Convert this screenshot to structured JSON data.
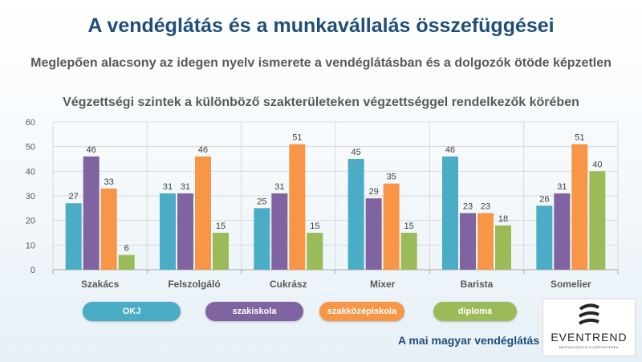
{
  "slide": {
    "title": "A vendéglátás és a munkavállalás összefüggései",
    "subtitle": "Meglepően alacsony az idegen nyelv ismerete a vendéglátásban és a dolgozók ötöde képzetlen",
    "footer": "A mai magyar vendéglátás"
  },
  "logo": {
    "name": "EVENTREND",
    "tagline": "MEGVALÓSULÓ ELKÉPZELÉSEK"
  },
  "chart_data": {
    "type": "bar",
    "title": "Végzettségi szintek a különböző szakterületeken végzettséggel rendelkezők körében",
    "categories": [
      "Szakács",
      "Felszolgáló",
      "Cukrász",
      "Mixer",
      "Barista",
      "Somelier"
    ],
    "series": [
      {
        "name": "OKJ",
        "color": "#4bacc6",
        "values": [
          27,
          31,
          25,
          45,
          46,
          26
        ]
      },
      {
        "name": "szakiskola",
        "color": "#8064a2",
        "values": [
          46,
          31,
          31,
          29,
          23,
          31
        ]
      },
      {
        "name": "szakközépiskola",
        "color": "#f79646",
        "values": [
          33,
          46,
          51,
          35,
          23,
          51
        ]
      },
      {
        "name": "diploma",
        "color": "#9bbb59",
        "values": [
          6,
          15,
          15,
          15,
          18,
          40
        ]
      }
    ],
    "ylim": [
      0,
      60
    ],
    "yticks": [
      0,
      10,
      20,
      30,
      40,
      50,
      60
    ],
    "grid": true,
    "legend_position": "bottom",
    "data_labels": true
  }
}
